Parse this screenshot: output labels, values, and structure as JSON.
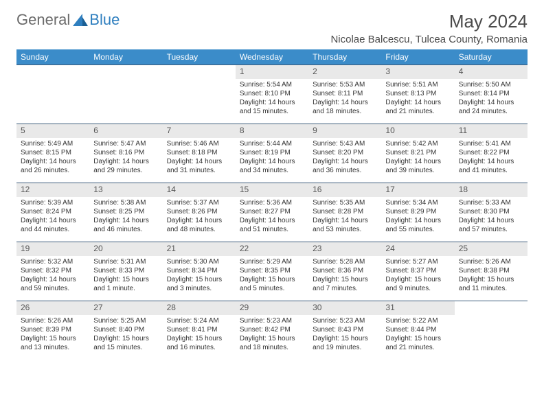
{
  "logo": {
    "text1": "General",
    "text2": "Blue"
  },
  "title": "May 2024",
  "location": "Nicolae Balcescu, Tulcea County, Romania",
  "colors": {
    "header_bg": "#3b8cc9",
    "header_text": "#ffffff",
    "daynum_bg": "#e9e9e9",
    "row_border": "#3b5a7a",
    "logo_gray": "#6b6b6b",
    "logo_blue": "#2f7fbf"
  },
  "weekdays": [
    "Sunday",
    "Monday",
    "Tuesday",
    "Wednesday",
    "Thursday",
    "Friday",
    "Saturday"
  ],
  "weeks": [
    [
      {
        "empty": true
      },
      {
        "empty": true
      },
      {
        "empty": true
      },
      {
        "day": "1",
        "sunrise": "Sunrise: 5:54 AM",
        "sunset": "Sunset: 8:10 PM",
        "daylight": "Daylight: 14 hours and 15 minutes."
      },
      {
        "day": "2",
        "sunrise": "Sunrise: 5:53 AM",
        "sunset": "Sunset: 8:11 PM",
        "daylight": "Daylight: 14 hours and 18 minutes."
      },
      {
        "day": "3",
        "sunrise": "Sunrise: 5:51 AM",
        "sunset": "Sunset: 8:13 PM",
        "daylight": "Daylight: 14 hours and 21 minutes."
      },
      {
        "day": "4",
        "sunrise": "Sunrise: 5:50 AM",
        "sunset": "Sunset: 8:14 PM",
        "daylight": "Daylight: 14 hours and 24 minutes."
      }
    ],
    [
      {
        "day": "5",
        "sunrise": "Sunrise: 5:49 AM",
        "sunset": "Sunset: 8:15 PM",
        "daylight": "Daylight: 14 hours and 26 minutes."
      },
      {
        "day": "6",
        "sunrise": "Sunrise: 5:47 AM",
        "sunset": "Sunset: 8:16 PM",
        "daylight": "Daylight: 14 hours and 29 minutes."
      },
      {
        "day": "7",
        "sunrise": "Sunrise: 5:46 AM",
        "sunset": "Sunset: 8:18 PM",
        "daylight": "Daylight: 14 hours and 31 minutes."
      },
      {
        "day": "8",
        "sunrise": "Sunrise: 5:44 AM",
        "sunset": "Sunset: 8:19 PM",
        "daylight": "Daylight: 14 hours and 34 minutes."
      },
      {
        "day": "9",
        "sunrise": "Sunrise: 5:43 AM",
        "sunset": "Sunset: 8:20 PM",
        "daylight": "Daylight: 14 hours and 36 minutes."
      },
      {
        "day": "10",
        "sunrise": "Sunrise: 5:42 AM",
        "sunset": "Sunset: 8:21 PM",
        "daylight": "Daylight: 14 hours and 39 minutes."
      },
      {
        "day": "11",
        "sunrise": "Sunrise: 5:41 AM",
        "sunset": "Sunset: 8:22 PM",
        "daylight": "Daylight: 14 hours and 41 minutes."
      }
    ],
    [
      {
        "day": "12",
        "sunrise": "Sunrise: 5:39 AM",
        "sunset": "Sunset: 8:24 PM",
        "daylight": "Daylight: 14 hours and 44 minutes."
      },
      {
        "day": "13",
        "sunrise": "Sunrise: 5:38 AM",
        "sunset": "Sunset: 8:25 PM",
        "daylight": "Daylight: 14 hours and 46 minutes."
      },
      {
        "day": "14",
        "sunrise": "Sunrise: 5:37 AM",
        "sunset": "Sunset: 8:26 PM",
        "daylight": "Daylight: 14 hours and 48 minutes."
      },
      {
        "day": "15",
        "sunrise": "Sunrise: 5:36 AM",
        "sunset": "Sunset: 8:27 PM",
        "daylight": "Daylight: 14 hours and 51 minutes."
      },
      {
        "day": "16",
        "sunrise": "Sunrise: 5:35 AM",
        "sunset": "Sunset: 8:28 PM",
        "daylight": "Daylight: 14 hours and 53 minutes."
      },
      {
        "day": "17",
        "sunrise": "Sunrise: 5:34 AM",
        "sunset": "Sunset: 8:29 PM",
        "daylight": "Daylight: 14 hours and 55 minutes."
      },
      {
        "day": "18",
        "sunrise": "Sunrise: 5:33 AM",
        "sunset": "Sunset: 8:30 PM",
        "daylight": "Daylight: 14 hours and 57 minutes."
      }
    ],
    [
      {
        "day": "19",
        "sunrise": "Sunrise: 5:32 AM",
        "sunset": "Sunset: 8:32 PM",
        "daylight": "Daylight: 14 hours and 59 minutes."
      },
      {
        "day": "20",
        "sunrise": "Sunrise: 5:31 AM",
        "sunset": "Sunset: 8:33 PM",
        "daylight": "Daylight: 15 hours and 1 minute."
      },
      {
        "day": "21",
        "sunrise": "Sunrise: 5:30 AM",
        "sunset": "Sunset: 8:34 PM",
        "daylight": "Daylight: 15 hours and 3 minutes."
      },
      {
        "day": "22",
        "sunrise": "Sunrise: 5:29 AM",
        "sunset": "Sunset: 8:35 PM",
        "daylight": "Daylight: 15 hours and 5 minutes."
      },
      {
        "day": "23",
        "sunrise": "Sunrise: 5:28 AM",
        "sunset": "Sunset: 8:36 PM",
        "daylight": "Daylight: 15 hours and 7 minutes."
      },
      {
        "day": "24",
        "sunrise": "Sunrise: 5:27 AM",
        "sunset": "Sunset: 8:37 PM",
        "daylight": "Daylight: 15 hours and 9 minutes."
      },
      {
        "day": "25",
        "sunrise": "Sunrise: 5:26 AM",
        "sunset": "Sunset: 8:38 PM",
        "daylight": "Daylight: 15 hours and 11 minutes."
      }
    ],
    [
      {
        "day": "26",
        "sunrise": "Sunrise: 5:26 AM",
        "sunset": "Sunset: 8:39 PM",
        "daylight": "Daylight: 15 hours and 13 minutes."
      },
      {
        "day": "27",
        "sunrise": "Sunrise: 5:25 AM",
        "sunset": "Sunset: 8:40 PM",
        "daylight": "Daylight: 15 hours and 15 minutes."
      },
      {
        "day": "28",
        "sunrise": "Sunrise: 5:24 AM",
        "sunset": "Sunset: 8:41 PM",
        "daylight": "Daylight: 15 hours and 16 minutes."
      },
      {
        "day": "29",
        "sunrise": "Sunrise: 5:23 AM",
        "sunset": "Sunset: 8:42 PM",
        "daylight": "Daylight: 15 hours and 18 minutes."
      },
      {
        "day": "30",
        "sunrise": "Sunrise: 5:23 AM",
        "sunset": "Sunset: 8:43 PM",
        "daylight": "Daylight: 15 hours and 19 minutes."
      },
      {
        "day": "31",
        "sunrise": "Sunrise: 5:22 AM",
        "sunset": "Sunset: 8:44 PM",
        "daylight": "Daylight: 15 hours and 21 minutes."
      },
      {
        "empty": true
      }
    ]
  ]
}
